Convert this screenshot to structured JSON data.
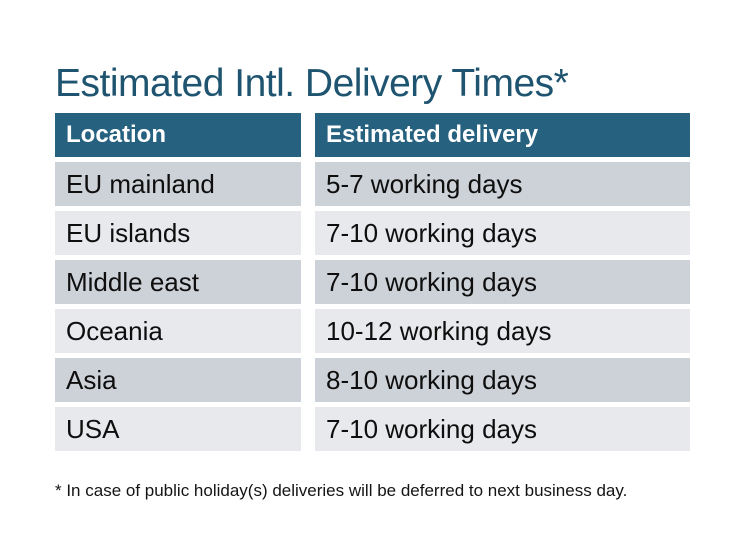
{
  "title": {
    "text": "Estimated Intl. Delivery Times*",
    "color": "#1F5470"
  },
  "table": {
    "header": {
      "bg": "#266280",
      "text_color": "#FFFFFF",
      "location_label": "Location",
      "delivery_label": "Estimated delivery"
    },
    "row_colors": {
      "odd": "#CDD1D8",
      "even": "#E7E9EC"
    },
    "rows": [
      {
        "location": "EU mainland",
        "delivery": "5-7 working days"
      },
      {
        "location": "EU islands",
        "delivery": "7-10 working days"
      },
      {
        "location": "Middle east",
        "delivery": "7-10 working days"
      },
      {
        "location": "Oceania",
        "delivery": "10-12 working days"
      },
      {
        "location": "Asia",
        "delivery": "8-10 working days"
      },
      {
        "location": "USA",
        "delivery": "7-10 working days"
      }
    ]
  },
  "footnote": {
    "text": "* In case of public holiday(s) deliveries will be deferred to next business day."
  }
}
